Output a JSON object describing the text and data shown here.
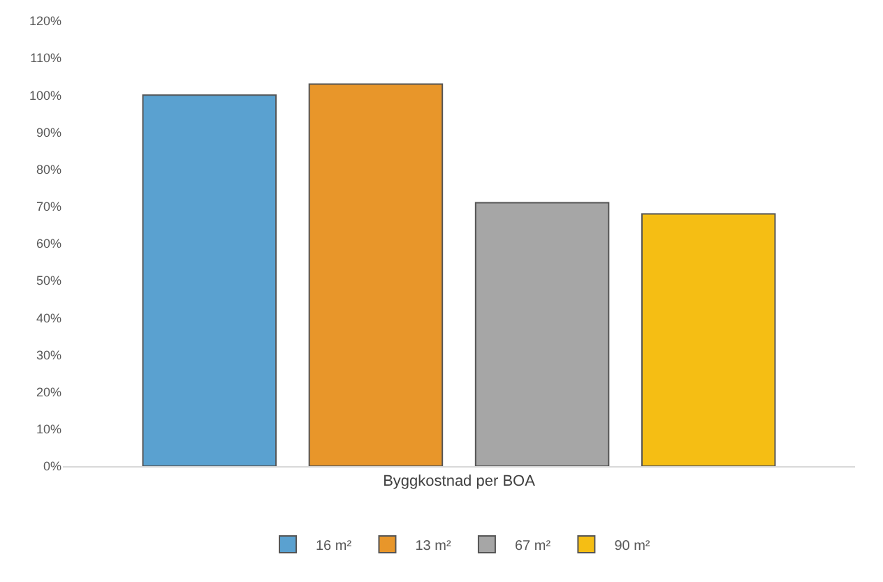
{
  "chart_data": {
    "type": "bar",
    "xlabel": "Byggkostnad per BOA",
    "categories": [
      null
    ],
    "series": [
      {
        "name": "16 m²",
        "color": "#5aa1d0",
        "values": [
          100
        ]
      },
      {
        "name": "13 m²",
        "color": "#e8962a",
        "values": [
          103
        ]
      },
      {
        "name": "67 m²",
        "color": "#a6a6a6",
        "values": [
          71
        ]
      },
      {
        "name": "90 m²",
        "color": "#f5be14",
        "values": [
          68
        ]
      }
    ],
    "ylim": [
      0,
      120
    ],
    "yticks": [
      {
        "value": 0,
        "label": "0%"
      },
      {
        "value": 10,
        "label": "10%"
      },
      {
        "value": 20,
        "label": "20%"
      },
      {
        "value": 30,
        "label": "30%"
      },
      {
        "value": 40,
        "label": "40%"
      },
      {
        "value": 50,
        "label": "50%"
      },
      {
        "value": 60,
        "label": "60%"
      },
      {
        "value": 70,
        "label": "70%"
      },
      {
        "value": 80,
        "label": "80%"
      },
      {
        "value": 90,
        "label": "90%"
      },
      {
        "value": 100,
        "label": "100%"
      },
      {
        "value": 110,
        "label": "110%"
      },
      {
        "value": 120,
        "label": "120%"
      }
    ],
    "grid": false,
    "legend": "bottom"
  }
}
